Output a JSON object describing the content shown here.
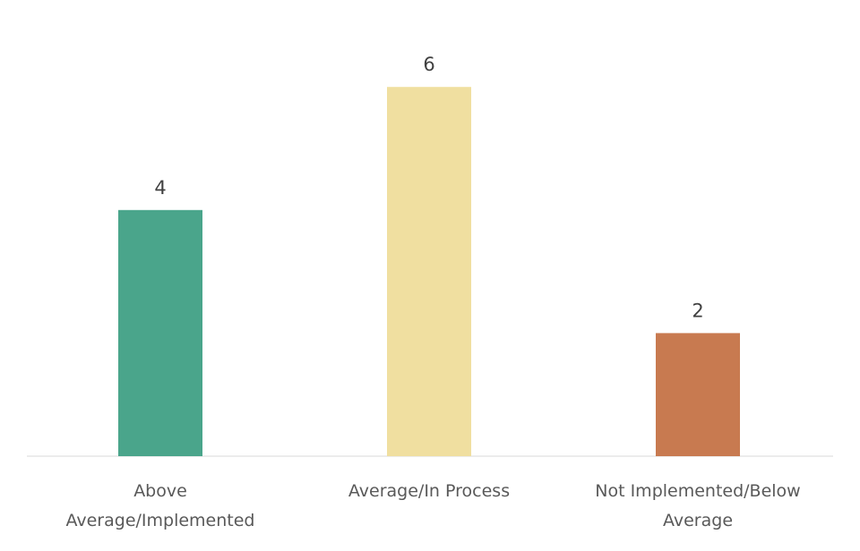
{
  "chart_data": {
    "type": "bar",
    "title": "",
    "xlabel": "",
    "ylabel": "",
    "categories": [
      [
        "Above",
        "Average/Implemented"
      ],
      [
        "Average/In Process"
      ],
      [
        "Not Implemented/Below",
        "Average"
      ]
    ],
    "values": [
      4,
      6,
      2
    ],
    "colors": [
      "#4aa58b",
      "#f0dfa0",
      "#c87a50"
    ],
    "ylim": [
      0,
      7
    ],
    "grid": false,
    "legend": "none"
  }
}
